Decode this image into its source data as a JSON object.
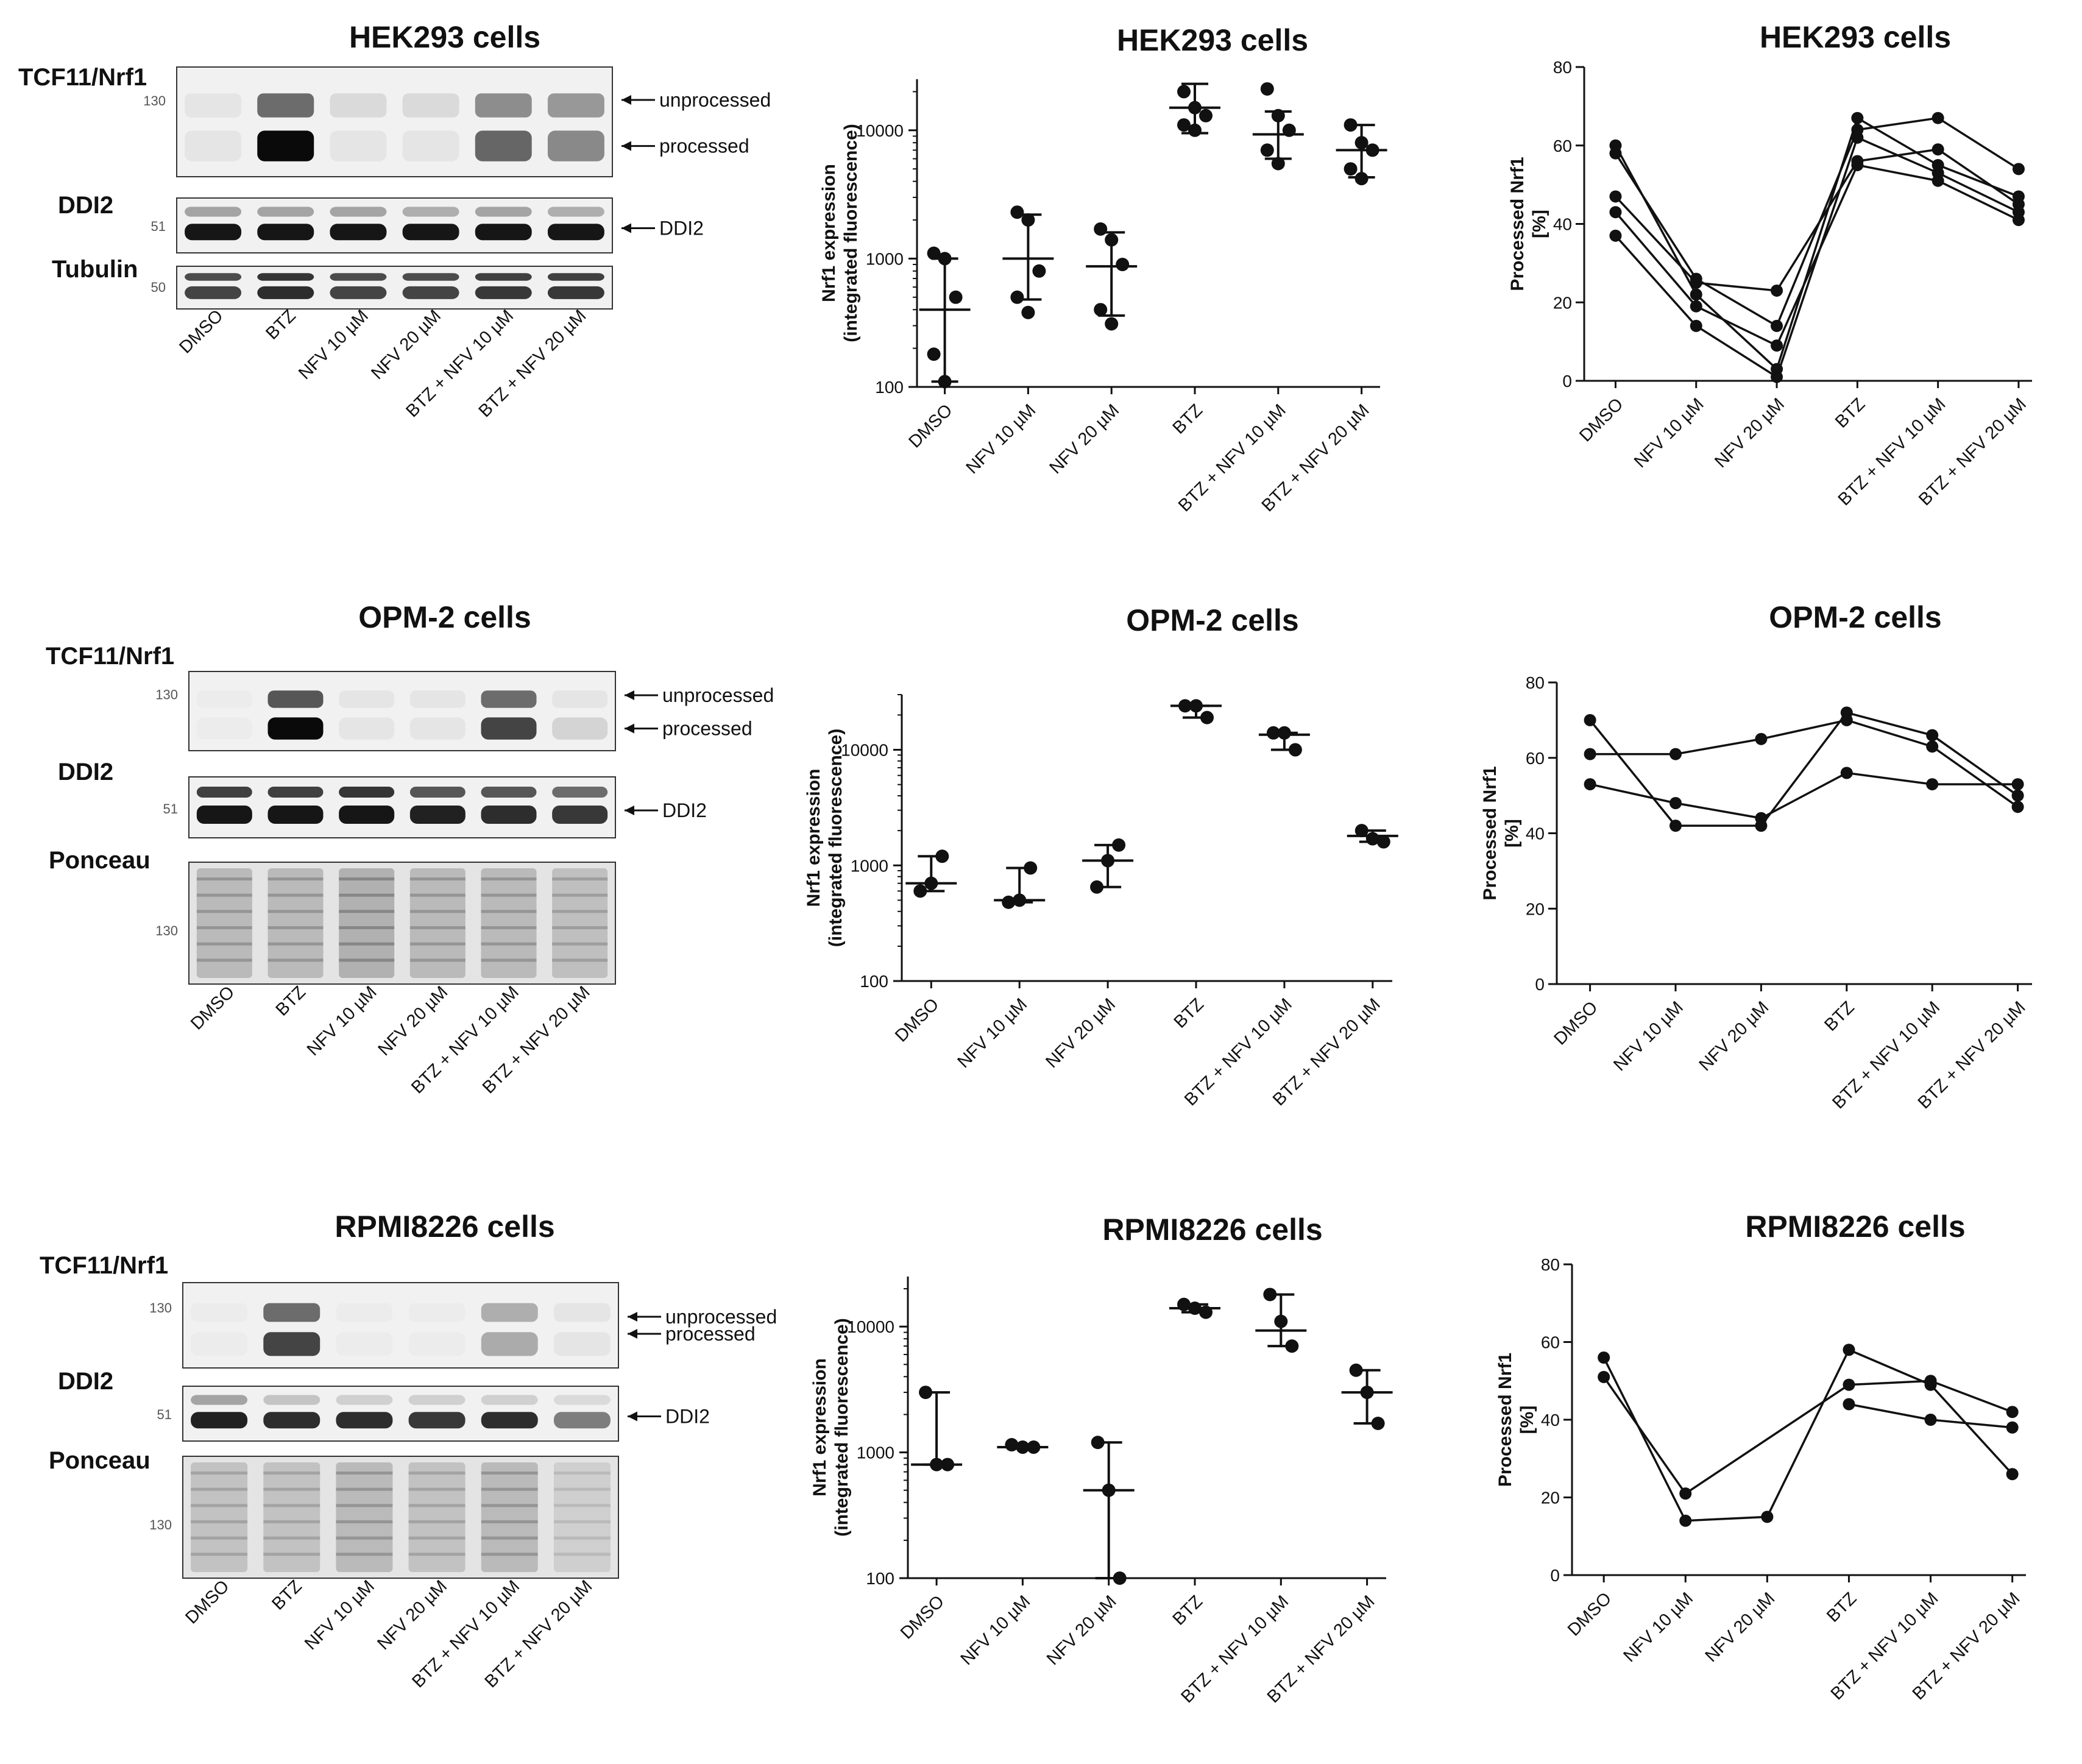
{
  "rows": [
    {
      "cell": "HEK293 cells",
      "blot": {
        "title": "HEK293 cells",
        "lanes": [
          "DMSO",
          "BTZ",
          "NFV 10 µM",
          "NFV 20 µM",
          "BTZ + NFV 10 µM",
          "BTZ + NFV 20 µM"
        ],
        "panels": [
          {
            "label": "TCF11/Nrf1",
            "mw": "130",
            "arrows": [
              "unprocessed",
              "processed"
            ],
            "upper_band": [
              0.05,
              0.6,
              0.1,
              0.1,
              0.45,
              0.4
            ],
            "lower_band": [
              0.05,
              1.0,
              0.05,
              0.05,
              0.6,
              0.45
            ]
          },
          {
            "label": "DDI2",
            "mw": "51",
            "arrows": [
              "DDI2"
            ],
            "upper_band": [
              0.35,
              0.35,
              0.35,
              0.3,
              0.35,
              0.3
            ],
            "lower_band": [
              0.95,
              0.95,
              0.95,
              0.95,
              0.95,
              0.95
            ]
          },
          {
            "label": "Tubulin",
            "mw": "50",
            "arrows": [],
            "upper_band": [
              0.75,
              0.85,
              0.75,
              0.75,
              0.8,
              0.8
            ],
            "lower_band": [
              0.75,
              0.85,
              0.75,
              0.75,
              0.8,
              0.8
            ]
          }
        ]
      },
      "expression": {
        "title": "HEK293 cells",
        "ylabel_line1": "Nrf1 expression",
        "ylabel_line2": "(integrated fluorescence)",
        "yscale": "log",
        "ylim": [
          100,
          25000
        ],
        "yticks": [
          "100",
          "1000",
          "10000"
        ],
        "categories": [
          "DMSO",
          "NFV 10 µM",
          "NFV 20 µM",
          "BTZ",
          "BTZ + NFV 10 µM",
          "BTZ + NFV 20 µM"
        ],
        "points": [
          [
            1100,
            1000,
            500,
            180,
            110
          ],
          [
            2300,
            2000,
            800,
            500,
            380
          ],
          [
            1700,
            1400,
            900,
            400,
            310
          ],
          [
            20000,
            15000,
            13000,
            11000,
            10000
          ],
          [
            21000,
            13000,
            10000,
            7000,
            5500
          ],
          [
            11000,
            8000,
            7000,
            5000,
            4200
          ]
        ],
        "center": [
          400,
          1000,
          870,
          15000,
          9300,
          7000
        ],
        "errors_low": [
          110,
          480,
          360,
          9500,
          6000,
          4300
        ],
        "errors_high": [
          1000,
          2200,
          1600,
          23000,
          14000,
          11000
        ]
      },
      "processed": {
        "title": "HEK293 cells",
        "ylabel_line1": "Processed Nrf1",
        "ylabel_line2": "[%]",
        "ylim": [
          0,
          80
        ],
        "yticks": [
          "0",
          "20",
          "40",
          "60",
          "80"
        ],
        "categories": [
          "DMSO",
          "NFV 10 µM",
          "NFV 20 µM",
          "BTZ",
          "BTZ + NFV 10 µM",
          "BTZ + NFV 20 µM"
        ],
        "series": [
          [
            60,
            22,
            3,
            67,
            55,
            47
          ],
          [
            58,
            26,
            14,
            64,
            67,
            54
          ],
          [
            47,
            25,
            23,
            56,
            59,
            45
          ],
          [
            43,
            19,
            9,
            55,
            51,
            41
          ],
          [
            37,
            14,
            1,
            62,
            53,
            43
          ]
        ]
      }
    },
    {
      "cell": "OPM-2 cells",
      "blot": {
        "title": "OPM-2 cells",
        "lanes": [
          "DMSO",
          "BTZ",
          "NFV 10 µM",
          "NFV 20 µM",
          "BTZ + NFV 10 µM",
          "BTZ + NFV 20 µM"
        ],
        "panels": [
          {
            "label": "TCF11/Nrf1",
            "mw": "130",
            "arrows": [
              "unprocessed",
              "processed"
            ],
            "upper_band": [
              0.02,
              0.7,
              0.05,
              0.05,
              0.6,
              0.05
            ],
            "lower_band": [
              0.02,
              1.0,
              0.05,
              0.05,
              0.75,
              0.12
            ]
          },
          {
            "label": "DDI2",
            "mw": "51",
            "arrows": [
              "DDI2"
            ],
            "upper_band": [
              0.8,
              0.8,
              0.85,
              0.7,
              0.7,
              0.6
            ],
            "lower_band": [
              0.95,
              0.95,
              0.95,
              0.9,
              0.85,
              0.8
            ]
          },
          {
            "label": "Ponceau",
            "mw": "130",
            "arrows": [],
            "upper_band": [
              0.25,
              0.25,
              0.3,
              0.25,
              0.25,
              0.22
            ],
            "lower_band": [
              0.25,
              0.25,
              0.3,
              0.25,
              0.25,
              0.22
            ]
          }
        ]
      },
      "expression": {
        "title": "OPM-2 cells",
        "ylabel_line1": "Nrf1 expression",
        "ylabel_line2": "(integrated fluorescence)",
        "yscale": "log",
        "ylim": [
          100,
          30000
        ],
        "yticks": [
          "100",
          "1000",
          "10000"
        ],
        "categories": [
          "DMSO",
          "NFV 10 µM",
          "NFV 20 µM",
          "BTZ",
          "BTZ + NFV 10 µM",
          "BTZ + NFV 20 µM"
        ],
        "points": [
          [
            600,
            700,
            1200
          ],
          [
            480,
            500,
            950
          ],
          [
            650,
            1100,
            1500
          ],
          [
            24000,
            24000,
            19000
          ],
          [
            14000,
            14000,
            10000
          ],
          [
            2000,
            1700,
            1600
          ]
        ],
        "center": [
          700,
          500,
          1100,
          24000,
          13500,
          1800
        ],
        "errors_low": [
          600,
          480,
          650,
          19000,
          10000,
          1600
        ],
        "errors_high": [
          1200,
          950,
          1500,
          24000,
          14000,
          2000
        ]
      },
      "processed": {
        "title": "OPM-2 cells",
        "ylabel_line1": "Processed Nrf1",
        "ylabel_line2": "[%]",
        "ylim": [
          0,
          80
        ],
        "yticks": [
          "0",
          "20",
          "40",
          "60",
          "80"
        ],
        "categories": [
          "DMSO",
          "NFV 10 µM",
          "NFV 20 µM",
          "BTZ",
          "BTZ + NFV 10 µM",
          "BTZ + NFV 20 µM"
        ],
        "series": [
          [
            61,
            61,
            65,
            70,
            63,
            47
          ],
          [
            70,
            42,
            42,
            72,
            66,
            50
          ],
          [
            53,
            48,
            44,
            56,
            53,
            53
          ]
        ]
      }
    },
    {
      "cell": "RPMI8226 cells",
      "blot": {
        "title": "RPMI8226 cells",
        "lanes": [
          "DMSO",
          "BTZ",
          "NFV 10 µM",
          "NFV 20 µM",
          "BTZ + NFV 10 µM",
          "BTZ + NFV 20 µM"
        ],
        "panels": [
          {
            "label": "TCF11/Nrf1",
            "mw": "130",
            "arrows": [
              "unprocessed",
              "processed"
            ],
            "upper_band": [
              0.02,
              0.6,
              0.02,
              0.02,
              0.3,
              0.05
            ],
            "lower_band": [
              0.02,
              0.75,
              0.02,
              0.02,
              0.3,
              0.05
            ]
          },
          {
            "label": "DDI2",
            "mw": "51",
            "arrows": [
              "DDI2"
            ],
            "upper_band": [
              0.35,
              0.2,
              0.15,
              0.15,
              0.15,
              0.1
            ],
            "lower_band": [
              0.9,
              0.85,
              0.85,
              0.8,
              0.85,
              0.5
            ]
          },
          {
            "label": "Ponceau",
            "mw": "130",
            "arrows": [],
            "upper_band": [
              0.2,
              0.2,
              0.25,
              0.2,
              0.25,
              0.12
            ],
            "lower_band": [
              0.2,
              0.2,
              0.25,
              0.2,
              0.25,
              0.12
            ]
          }
        ]
      },
      "expression": {
        "title": "RPMI8226 cells",
        "ylabel_line1": "Nrf1 expression",
        "ylabel_line2": "(integrated fluorescence)",
        "yscale": "log",
        "ylim": [
          100,
          25000
        ],
        "yticks": [
          "100",
          "1000",
          "10000"
        ],
        "categories": [
          "DMSO",
          "NFV 10 µM",
          "NFV 20 µM",
          "BTZ",
          "BTZ + NFV 10 µM",
          "BTZ + NFV 20 µM"
        ],
        "points": [
          [
            3000,
            800,
            800
          ],
          [
            1150,
            1100,
            1100
          ],
          [
            1200,
            500,
            100
          ],
          [
            15000,
            14000,
            13000
          ],
          [
            18000,
            11000,
            7000
          ],
          [
            4500,
            3000,
            1700
          ]
        ],
        "center": [
          800,
          1100,
          500,
          14000,
          9300,
          3000
        ],
        "errors_low": [
          800,
          1100,
          100,
          13000,
          7000,
          1700
        ],
        "errors_high": [
          3000,
          1150,
          1200,
          15000,
          18000,
          4500
        ]
      },
      "processed": {
        "title": "RPMI8226 cells",
        "ylabel_line1": "Processed Nrf1",
        "ylabel_line2": "[%]",
        "ylim": [
          0,
          80
        ],
        "yticks": [
          "0",
          "20",
          "40",
          "60",
          "80"
        ],
        "categories": [
          "DMSO",
          "NFV 10 µM",
          "NFV 20 µM",
          "BTZ",
          "BTZ + NFV 10 µM",
          "BTZ + NFV 20 µM"
        ],
        "series": [
          [
            56,
            14,
            15,
            58,
            49,
            26
          ],
          [
            51,
            21,
            null,
            49,
            50,
            42
          ],
          [
            null,
            null,
            null,
            44,
            40,
            38
          ]
        ]
      }
    }
  ]
}
